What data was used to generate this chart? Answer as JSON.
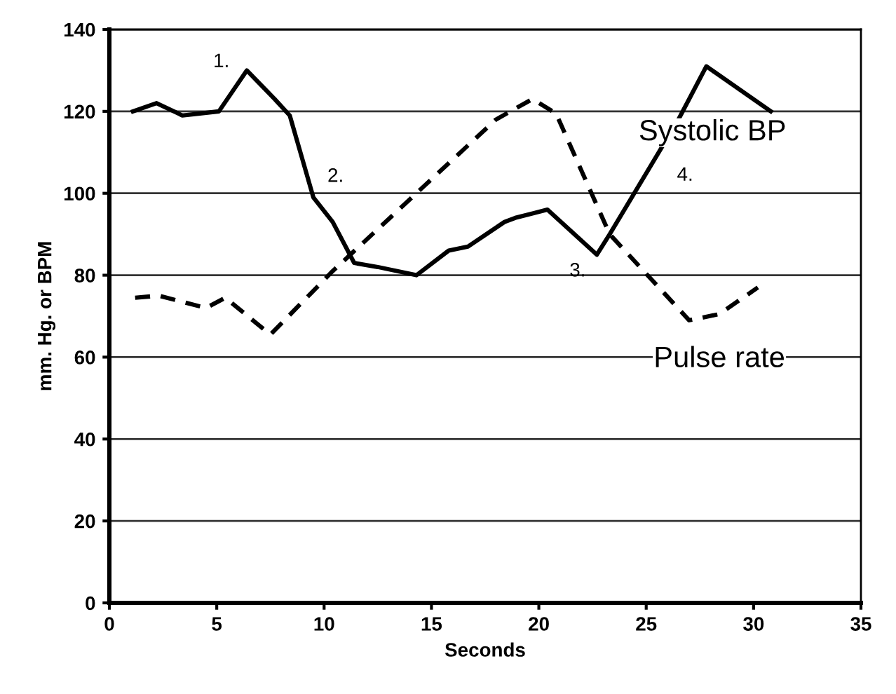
{
  "chart_data": {
    "type": "line",
    "xlabel": "Seconds",
    "ylabel": "mm. Hg. or BPM",
    "xlim": [
      0,
      35
    ],
    "xticks": [
      0,
      5,
      10,
      15,
      20,
      25,
      30,
      35
    ],
    "ylim": [
      0,
      140
    ],
    "yticks": [
      0,
      20,
      40,
      60,
      80,
      100,
      120,
      140
    ],
    "grid": "y",
    "series": [
      {
        "name": "Systolic BP",
        "color": "#000000",
        "line_style": "solid",
        "x": [
          1.1,
          2.2,
          3.4,
          5.1,
          6.4,
          7.7,
          8.4,
          9.5,
          10.4,
          11.4,
          12.5,
          14.3,
          15.8,
          16.7,
          18.4,
          18.9,
          20.4,
          22.7,
          23.3,
          26.5,
          27.8,
          30.8
        ],
        "values": [
          120,
          122,
          119,
          120,
          130,
          123,
          119,
          99,
          93,
          83,
          82,
          80,
          86,
          87,
          93,
          94,
          96,
          85,
          90,
          118,
          131,
          120
        ]
      },
      {
        "name": "Pulse rate",
        "color": "#000000",
        "line_style": "dashed",
        "x": [
          1.2,
          2.3,
          4.5,
          5.4,
          7.5,
          10.4,
          14.5,
          18.0,
          19.7,
          20.8,
          23.3,
          27.0,
          28.4,
          30.2
        ],
        "values": [
          74.5,
          75,
          72,
          74.5,
          65.5,
          81,
          101,
          118,
          123,
          119.5,
          90,
          69,
          70.5,
          77
        ]
      }
    ],
    "annotations": [
      "1.",
      "2.",
      "3.",
      "4."
    ]
  }
}
